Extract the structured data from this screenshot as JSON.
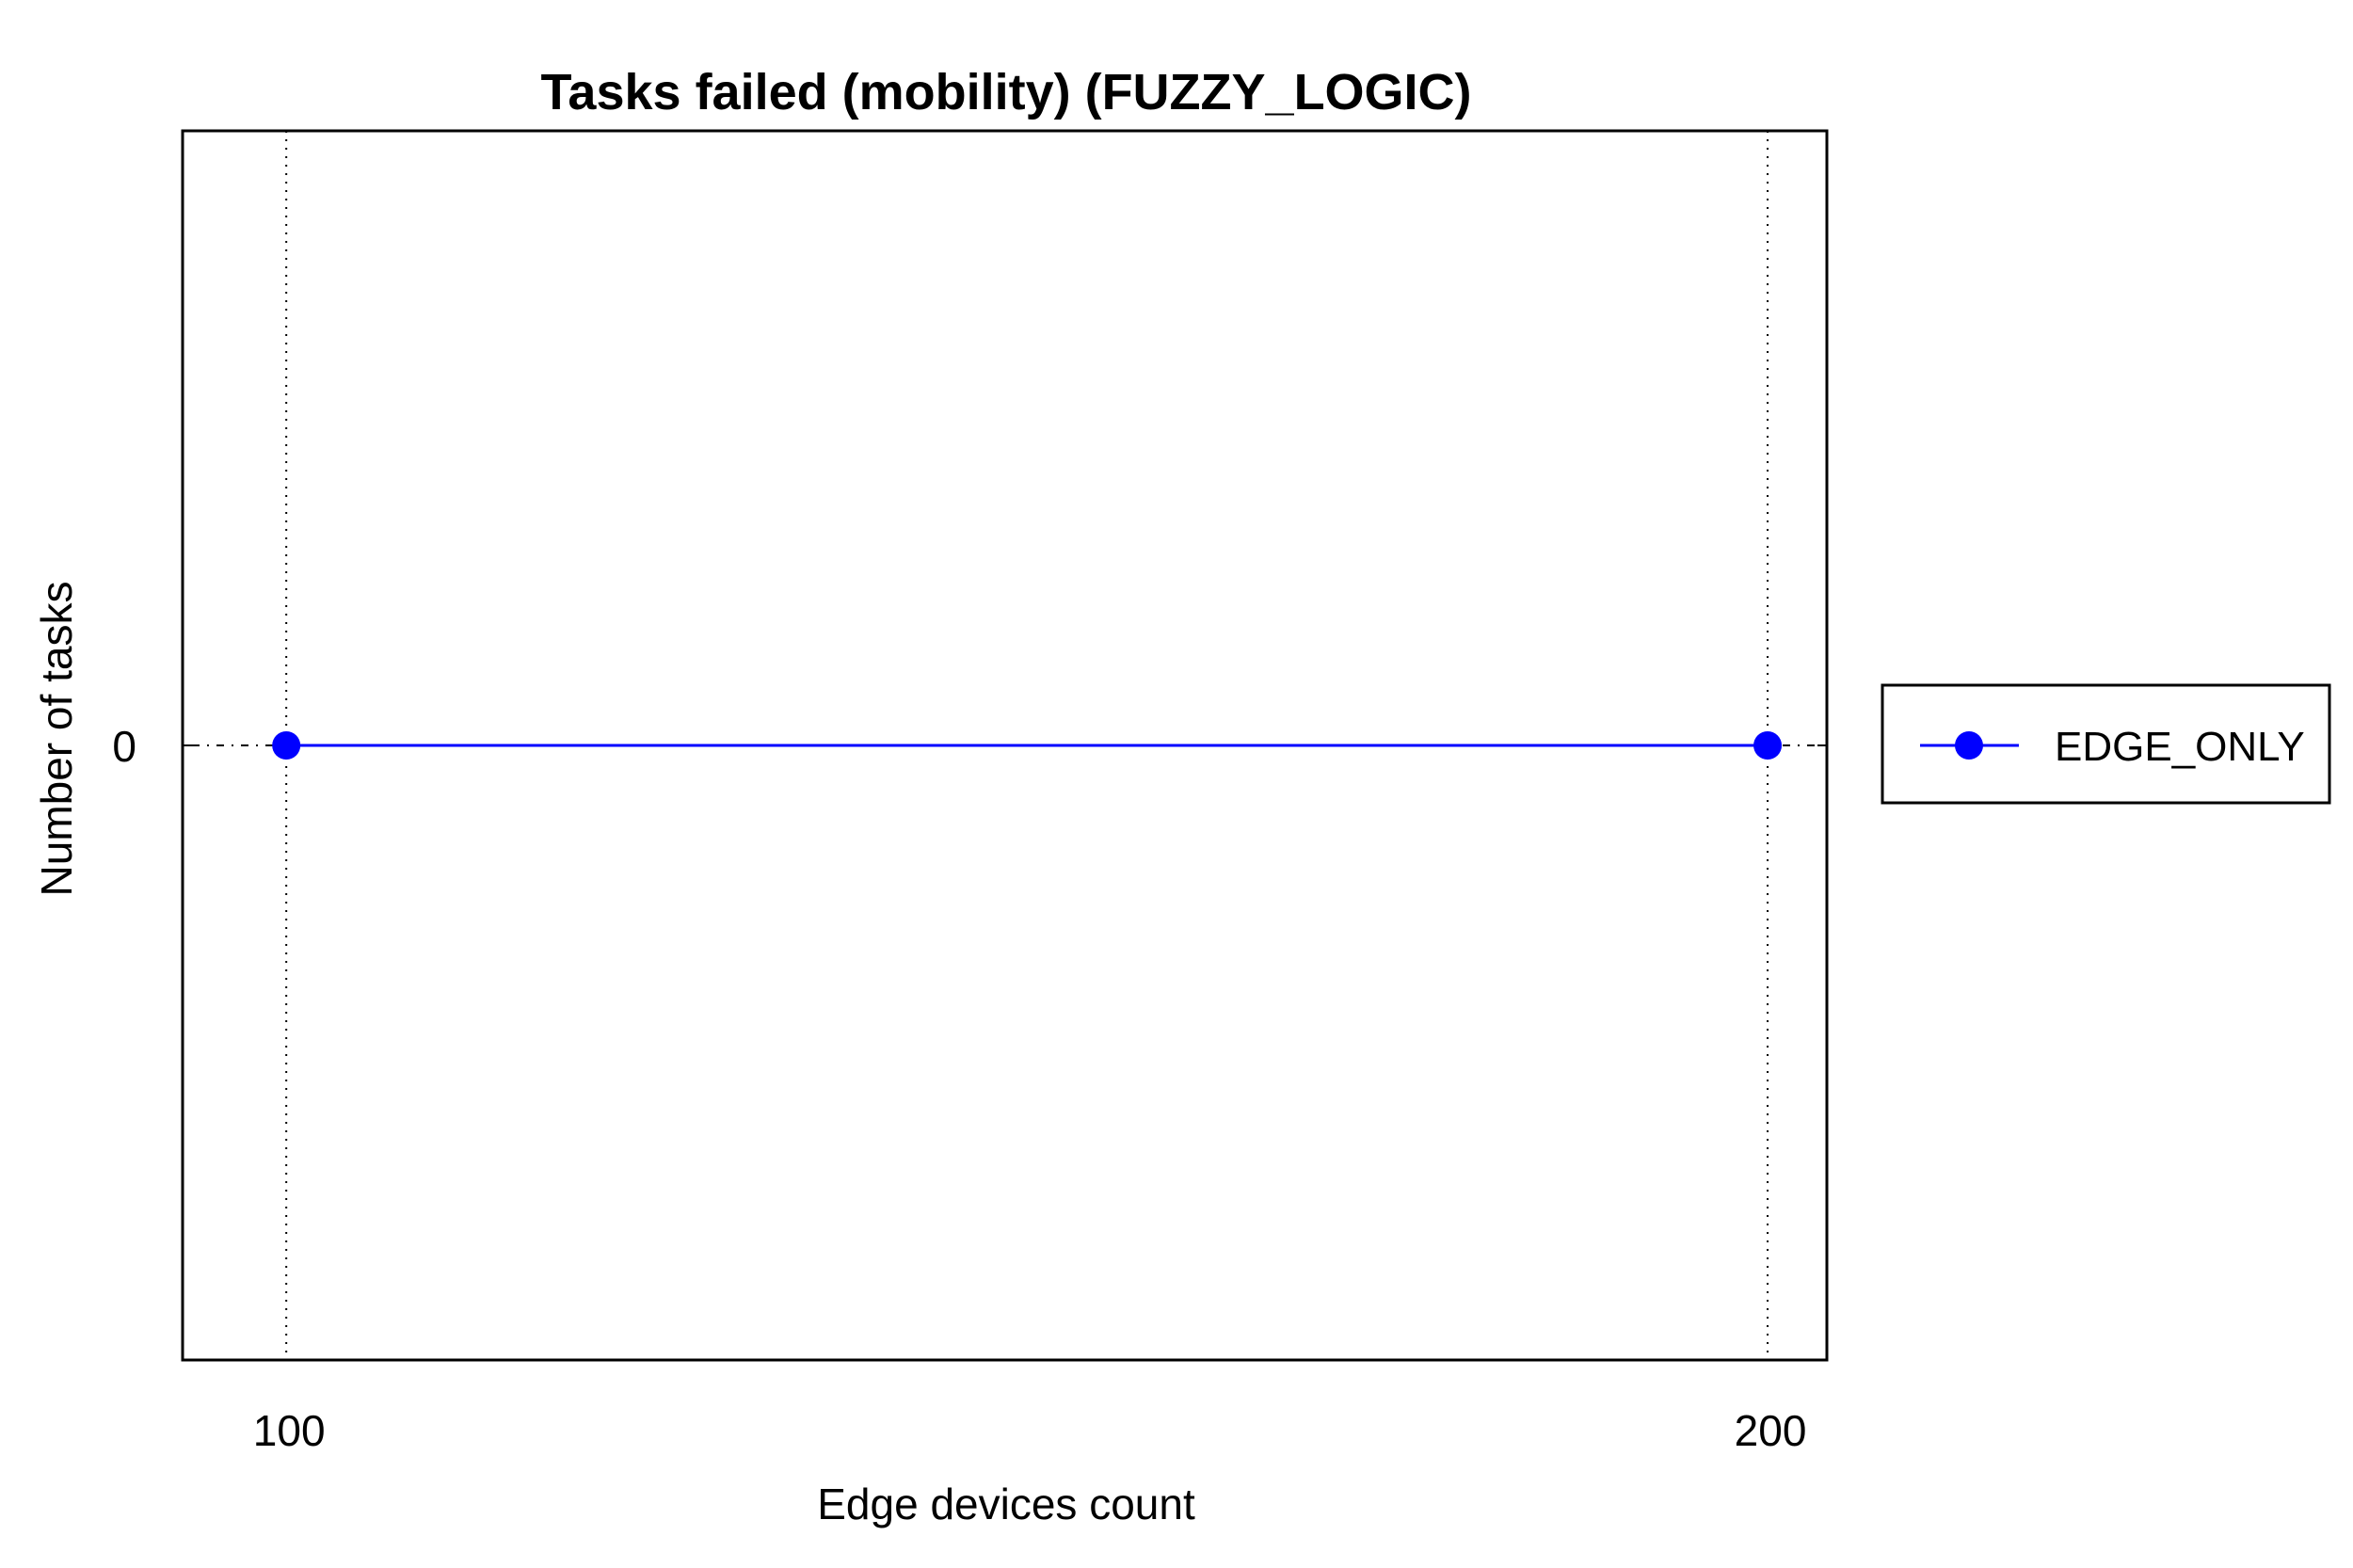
{
  "chart_data": {
    "type": "line",
    "title": "Tasks failed (mobility) (FUZZY_LOGIC)",
    "xlabel": "Edge devices count",
    "ylabel": "Number of tasks",
    "x": [
      100,
      200
    ],
    "x_ticks": [
      "100",
      "200"
    ],
    "y_ticks": [
      "0"
    ],
    "ylim": [
      -1,
      1
    ],
    "grid": "vertical dotted",
    "legend_position": "right",
    "series": [
      {
        "name": "EDGE_ONLY",
        "values": [
          0,
          0
        ],
        "color": "#0000ff",
        "marker": "circle"
      }
    ]
  }
}
